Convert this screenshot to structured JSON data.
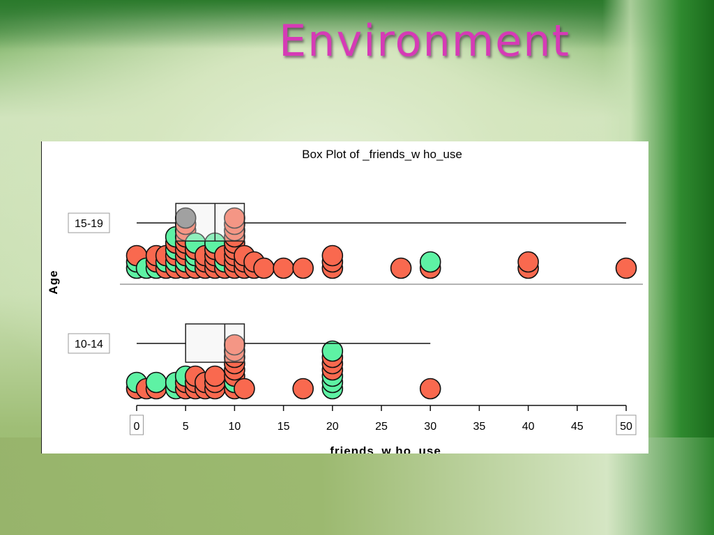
{
  "slide": {
    "title": "Environment"
  },
  "chart_data": {
    "type": "box_dot_plot",
    "title": "Box Plot of _friends_w ho_use",
    "xlabel": "friends_w ho_use",
    "ylabel": "Age",
    "xlim": [
      0,
      50
    ],
    "x_ticks": [
      "0",
      "5",
      "10",
      "15",
      "20",
      "25",
      "30",
      "35",
      "40",
      "45",
      "50"
    ],
    "colors": {
      "red": "#f9694f",
      "green": "#5ef2a4",
      "gray": "#7a7a7a"
    },
    "groups": [
      {
        "name": "15-19",
        "box": {
          "min": 0,
          "q1": 4,
          "median": 8,
          "q3": 11,
          "max": 50
        },
        "points": [
          {
            "x": 0,
            "c": "green"
          },
          {
            "x": 0,
            "c": "green"
          },
          {
            "x": 0,
            "c": "red"
          },
          {
            "x": 1,
            "c": "green"
          },
          {
            "x": 2,
            "c": "green"
          },
          {
            "x": 2,
            "c": "red"
          },
          {
            "x": 2,
            "c": "red"
          },
          {
            "x": 3,
            "c": "red"
          },
          {
            "x": 3,
            "c": "green"
          },
          {
            "x": 3,
            "c": "red"
          },
          {
            "x": 4,
            "c": "red"
          },
          {
            "x": 4,
            "c": "green"
          },
          {
            "x": 4,
            "c": "red"
          },
          {
            "x": 4,
            "c": "green"
          },
          {
            "x": 4,
            "c": "red"
          },
          {
            "x": 4,
            "c": "green"
          },
          {
            "x": 5,
            "c": "red"
          },
          {
            "x": 5,
            "c": "green"
          },
          {
            "x": 5,
            "c": "red"
          },
          {
            "x": 5,
            "c": "red"
          },
          {
            "x": 5,
            "c": "red"
          },
          {
            "x": 5,
            "c": "red"
          },
          {
            "x": 5,
            "c": "red"
          },
          {
            "x": 5,
            "c": "red"
          },
          {
            "x": 5,
            "c": "gray"
          },
          {
            "x": 6,
            "c": "red"
          },
          {
            "x": 6,
            "c": "green"
          },
          {
            "x": 6,
            "c": "green"
          },
          {
            "x": 6,
            "c": "red"
          },
          {
            "x": 6,
            "c": "green"
          },
          {
            "x": 7,
            "c": "red"
          },
          {
            "x": 7,
            "c": "red"
          },
          {
            "x": 7,
            "c": "red"
          },
          {
            "x": 8,
            "c": "red"
          },
          {
            "x": 8,
            "c": "red"
          },
          {
            "x": 8,
            "c": "red"
          },
          {
            "x": 8,
            "c": "red"
          },
          {
            "x": 8,
            "c": "green"
          },
          {
            "x": 9,
            "c": "red"
          },
          {
            "x": 9,
            "c": "green"
          },
          {
            "x": 9,
            "c": "red"
          },
          {
            "x": 10,
            "c": "red"
          },
          {
            "x": 10,
            "c": "red"
          },
          {
            "x": 10,
            "c": "red"
          },
          {
            "x": 10,
            "c": "red"
          },
          {
            "x": 10,
            "c": "red"
          },
          {
            "x": 10,
            "c": "red"
          },
          {
            "x": 10,
            "c": "red"
          },
          {
            "x": 10,
            "c": "red"
          },
          {
            "x": 10,
            "c": "red"
          },
          {
            "x": 11,
            "c": "red"
          },
          {
            "x": 11,
            "c": "red"
          },
          {
            "x": 11,
            "c": "red"
          },
          {
            "x": 12,
            "c": "red"
          },
          {
            "x": 12,
            "c": "red"
          },
          {
            "x": 13,
            "c": "red"
          },
          {
            "x": 15,
            "c": "red"
          },
          {
            "x": 17,
            "c": "red"
          },
          {
            "x": 20,
            "c": "red"
          },
          {
            "x": 20,
            "c": "red"
          },
          {
            "x": 20,
            "c": "red"
          },
          {
            "x": 27,
            "c": "red"
          },
          {
            "x": 30,
            "c": "red"
          },
          {
            "x": 30,
            "c": "green"
          },
          {
            "x": 40,
            "c": "red"
          },
          {
            "x": 40,
            "c": "red"
          },
          {
            "x": 50,
            "c": "red"
          }
        ]
      },
      {
        "name": "10-14",
        "box": {
          "min": 0,
          "q1": 5,
          "median": 9,
          "q3": 11,
          "max": 30
        },
        "points": [
          {
            "x": 0,
            "c": "red"
          },
          {
            "x": 0,
            "c": "green"
          },
          {
            "x": 1,
            "c": "red"
          },
          {
            "x": 2,
            "c": "red"
          },
          {
            "x": 2,
            "c": "green"
          },
          {
            "x": 4,
            "c": "green"
          },
          {
            "x": 4,
            "c": "green"
          },
          {
            "x": 5,
            "c": "red"
          },
          {
            "x": 5,
            "c": "red"
          },
          {
            "x": 5,
            "c": "green"
          },
          {
            "x": 6,
            "c": "red"
          },
          {
            "x": 6,
            "c": "red"
          },
          {
            "x": 6,
            "c": "red"
          },
          {
            "x": 7,
            "c": "red"
          },
          {
            "x": 7,
            "c": "red"
          },
          {
            "x": 8,
            "c": "red"
          },
          {
            "x": 8,
            "c": "red"
          },
          {
            "x": 8,
            "c": "red"
          },
          {
            "x": 10,
            "c": "red"
          },
          {
            "x": 10,
            "c": "green"
          },
          {
            "x": 10,
            "c": "red"
          },
          {
            "x": 10,
            "c": "red"
          },
          {
            "x": 10,
            "c": "red"
          },
          {
            "x": 10,
            "c": "red"
          },
          {
            "x": 10,
            "c": "red"
          },
          {
            "x": 10,
            "c": "red"
          },
          {
            "x": 11,
            "c": "red"
          },
          {
            "x": 17,
            "c": "red"
          },
          {
            "x": 20,
            "c": "green"
          },
          {
            "x": 20,
            "c": "green"
          },
          {
            "x": 20,
            "c": "green"
          },
          {
            "x": 20,
            "c": "red"
          },
          {
            "x": 20,
            "c": "red"
          },
          {
            "x": 20,
            "c": "red"
          },
          {
            "x": 20,
            "c": "green"
          },
          {
            "x": 30,
            "c": "red"
          }
        ]
      }
    ]
  }
}
